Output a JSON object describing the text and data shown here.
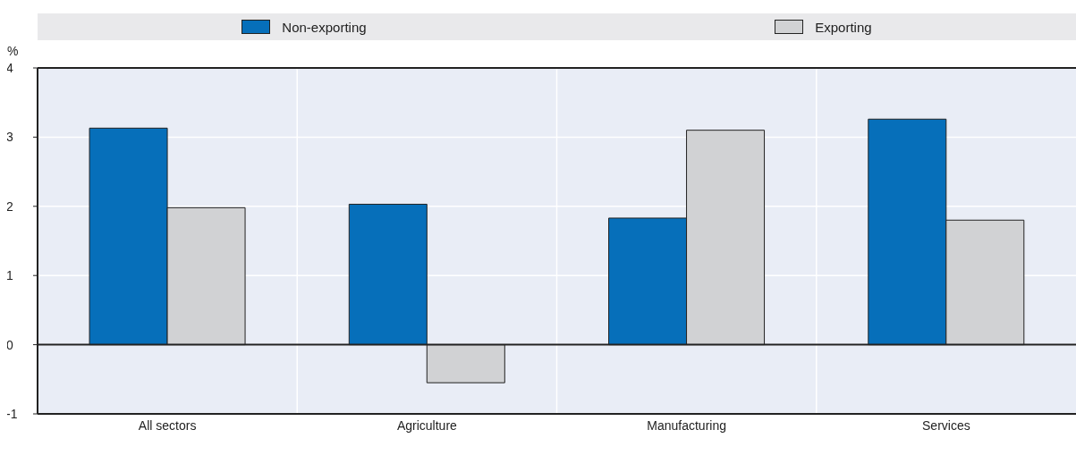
{
  "chart_data": {
    "type": "bar",
    "ylabel": "%",
    "categories": [
      "All sectors",
      "Agriculture",
      "Manufacturing",
      "Services"
    ],
    "series": [
      {
        "name": "Non-exporting",
        "color": "#066fba",
        "values": [
          3.13,
          2.03,
          1.83,
          3.26
        ]
      },
      {
        "name": "Exporting",
        "color": "#d1d2d4",
        "values": [
          1.98,
          -0.55,
          3.1,
          1.8
        ]
      }
    ],
    "ylim": [
      -1,
      4
    ],
    "yticks": [
      -1,
      0,
      1,
      2,
      3,
      4
    ],
    "grid": true,
    "legend": "top"
  }
}
